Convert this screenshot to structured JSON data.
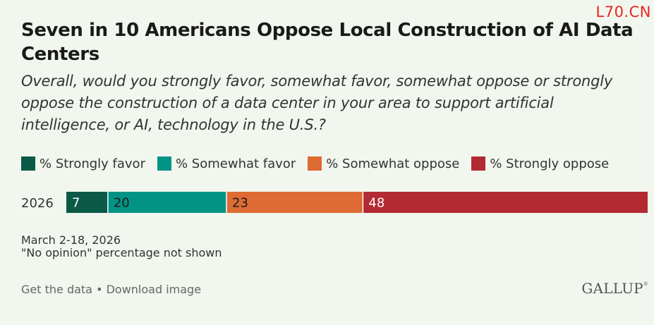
{
  "watermark": "L70.CN",
  "title": "Seven in 10 Americans Oppose Local Construction of AI Data Centers",
  "subtitle": "Overall, would you strongly favor, somewhat favor, somewhat oppose or strongly oppose the construction of a data center in your area to support artificial intelligence, or AI, technology in the U.S.?",
  "legend": [
    {
      "label": "% Strongly favor",
      "color": "#0b5947"
    },
    {
      "label": "% Somewhat favor",
      "color": "#019484"
    },
    {
      "label": "% Somewhat oppose",
      "color": "#de6b34"
    },
    {
      "label": "% Strongly oppose",
      "color": "#b32a32"
    }
  ],
  "chart_data": {
    "type": "bar",
    "orientation": "horizontal-stacked",
    "categories": [
      "2026"
    ],
    "series": [
      {
        "name": "% Strongly favor",
        "values": [
          7
        ],
        "color": "#0b5947"
      },
      {
        "name": "% Somewhat favor",
        "values": [
          20
        ],
        "color": "#019484"
      },
      {
        "name": "% Somewhat oppose",
        "values": [
          23
        ],
        "color": "#de6b34"
      },
      {
        "name": "% Strongly oppose",
        "values": [
          48
        ],
        "color": "#b32a32"
      }
    ],
    "legend_position": "top",
    "grid": false
  },
  "notes": {
    "date": "March 2-18, 2026",
    "footnote": "\"No opinion\" percentage not shown"
  },
  "links": {
    "get_data": "Get the data",
    "separator": " • ",
    "download": "Download image"
  },
  "brand": "GALLUP",
  "brand_mark": "®"
}
